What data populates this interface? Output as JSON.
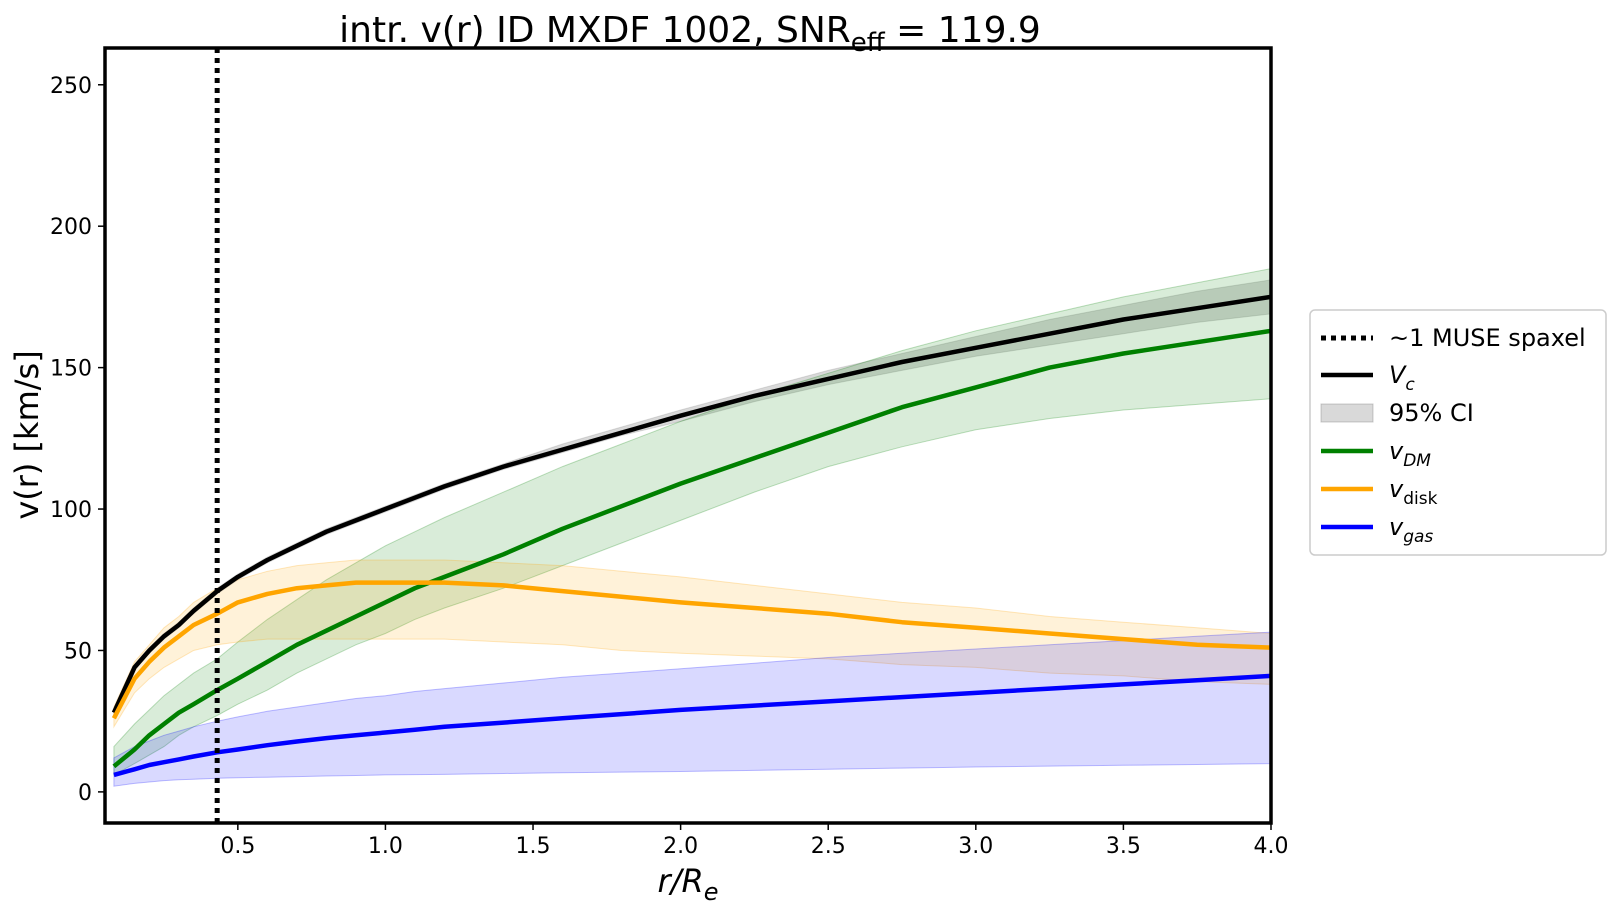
{
  "chart_data": {
    "type": "line",
    "title": {
      "main": "intr. v(r) ID MXDF 1002, SNR",
      "subscript": "eff",
      "suffix": " = 119.9"
    },
    "xlabel": {
      "base": "r/R",
      "subscript": "e"
    },
    "ylabel": "v(r) [km/s]",
    "xlim": [
      0.05,
      4.0
    ],
    "ylim": [
      -11,
      263
    ],
    "xticks": [
      0.5,
      1.0,
      1.5,
      2.0,
      2.5,
      3.0,
      3.5,
      4.0
    ],
    "xtick_labels": [
      "0.5",
      "1.0",
      "1.5",
      "2.0",
      "2.5",
      "3.0",
      "3.5",
      "4.0"
    ],
    "yticks": [
      0,
      50,
      100,
      150,
      200,
      250
    ],
    "ytick_labels": [
      "0",
      "50",
      "100",
      "150",
      "200",
      "250"
    ],
    "vline": {
      "x": 0.43,
      "style": "dotted",
      "color": "#000000",
      "label": "~1 MUSE spaxel"
    },
    "x": [
      0.08,
      0.15,
      0.2,
      0.25,
      0.3,
      0.35,
      0.43,
      0.5,
      0.6,
      0.7,
      0.8,
      0.9,
      1.0,
      1.1,
      1.2,
      1.4,
      1.6,
      1.8,
      2.0,
      2.25,
      2.5,
      2.75,
      3.0,
      3.25,
      3.5,
      3.75,
      4.0
    ],
    "series": [
      {
        "name": "V_c",
        "label_base": "V",
        "label_sub": "c",
        "color": "#000000",
        "values": [
          28,
          44,
          50,
          55,
          59,
          64,
          71,
          76,
          82,
          87,
          92,
          96,
          100,
          104,
          108,
          115,
          121,
          127,
          133,
          140,
          146,
          152,
          157,
          162,
          167,
          171,
          175
        ],
        "lower": [
          27,
          43,
          49,
          54,
          58,
          63,
          70,
          75,
          81,
          86,
          91,
          95,
          99,
          103,
          107,
          114,
          120,
          126,
          131,
          138,
          144,
          149,
          154,
          158,
          162,
          166,
          169
        ],
        "upper": [
          29,
          45,
          51,
          56,
          60,
          65,
          72,
          77,
          83,
          88,
          93,
          97,
          101,
          105,
          109,
          116,
          123,
          129,
          135,
          142,
          149,
          155,
          161,
          167,
          172,
          177,
          181
        ],
        "band_color": "#808080",
        "band_opacity": 0.3
      },
      {
        "name": "v_DM",
        "label_base": "v",
        "label_sub": "DM",
        "color": "#008000",
        "values": [
          9,
          15,
          20,
          24,
          28,
          31,
          36,
          40,
          46,
          52,
          57,
          62,
          67,
          72,
          76,
          84,
          93,
          101,
          109,
          118,
          127,
          136,
          143,
          150,
          155,
          159,
          163
        ],
        "lower": [
          6,
          10,
          13,
          16,
          20,
          23,
          27,
          31,
          36,
          42,
          47,
          52,
          56,
          61,
          65,
          72,
          80,
          88,
          96,
          106,
          115,
          122,
          128,
          132,
          135,
          137,
          139
        ],
        "upper": [
          16,
          24,
          29,
          34,
          38,
          42,
          47,
          53,
          61,
          68,
          75,
          81,
          87,
          92,
          97,
          106,
          115,
          123,
          131,
          140,
          148,
          156,
          163,
          169,
          175,
          180,
          185
        ],
        "band_color": "#008000",
        "band_opacity": 0.15
      },
      {
        "name": "v_disk",
        "label_base": "v",
        "label_sub": "disk",
        "color": "#ffa500",
        "values": [
          26,
          40,
          46,
          51,
          55,
          59,
          63,
          67,
          70,
          72,
          73,
          74,
          74,
          74,
          74,
          73,
          71,
          69,
          67,
          65,
          63,
          60,
          58,
          56,
          54,
          52,
          51
        ],
        "lower": [
          23,
          35,
          40,
          44,
          47,
          50,
          52,
          53,
          54,
          54,
          54,
          54,
          54,
          54,
          54,
          53,
          52,
          50,
          49,
          48,
          47,
          45,
          44,
          42,
          41,
          39,
          38
        ],
        "upper": [
          30,
          46,
          52,
          58,
          62,
          67,
          72,
          75,
          78,
          80,
          81,
          82,
          82,
          82,
          82,
          81,
          80,
          78,
          76,
          73,
          70,
          67,
          65,
          62,
          60,
          58,
          56
        ],
        "band_color": "#ffa500",
        "band_opacity": 0.15
      },
      {
        "name": "v_gas",
        "label_base": "v",
        "label_sub": "gas",
        "color": "#0000ff",
        "values": [
          6,
          8,
          9.5,
          10.5,
          11.5,
          12.5,
          14,
          15,
          16.5,
          17.8,
          19,
          20,
          21,
          22,
          23,
          24.5,
          26,
          27.5,
          29,
          30.5,
          32,
          33.5,
          35,
          36.5,
          38,
          39.5,
          41
        ],
        "lower": [
          2,
          3,
          3.5,
          4,
          4.3,
          4.5,
          4.8,
          5,
          5.2,
          5.4,
          5.6,
          5.8,
          6,
          6.1,
          6.2,
          6.5,
          6.8,
          7,
          7.2,
          7.6,
          8,
          8.4,
          8.8,
          9.1,
          9.4,
          9.7,
          10
        ],
        "upper": [
          12,
          16,
          18,
          20,
          21.5,
          23,
          25,
          26.5,
          28.5,
          30,
          31.5,
          33,
          34,
          35.5,
          36.5,
          38.5,
          40.5,
          42,
          43.5,
          45.5,
          47.5,
          49,
          50.5,
          52,
          53.5,
          55,
          56.5
        ],
        "band_color": "#0000ff",
        "band_opacity": 0.15
      }
    ],
    "legend": {
      "placement": "right-center",
      "ci_label": "95% CI",
      "ci_color": "#808080",
      "order": [
        "vline",
        "V_c",
        "ci",
        "v_DM",
        "v_disk",
        "v_gas"
      ]
    }
  }
}
